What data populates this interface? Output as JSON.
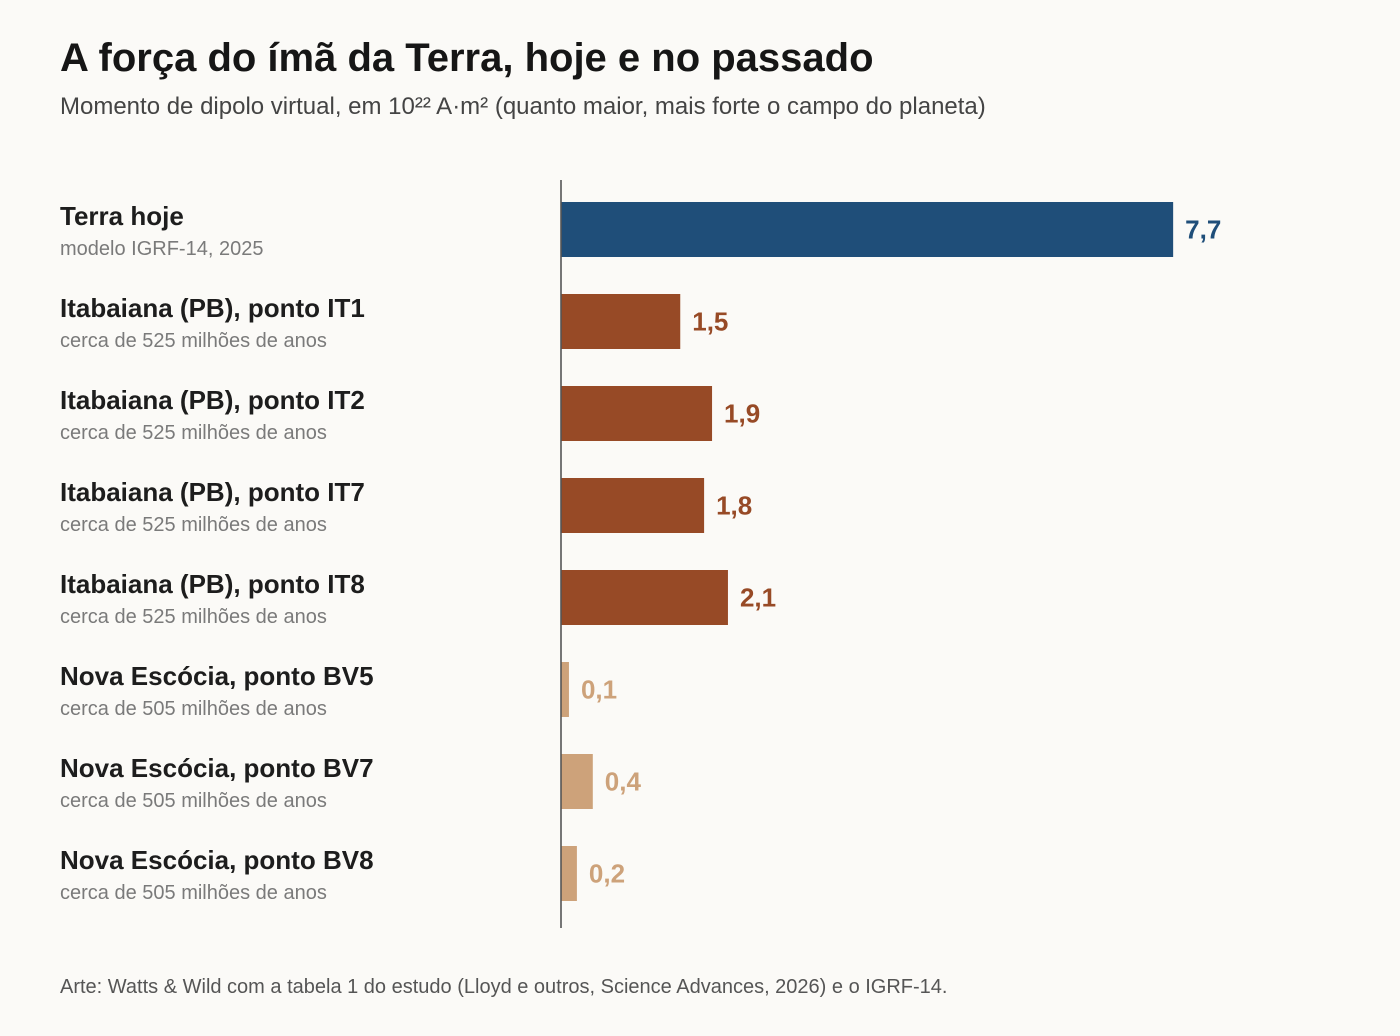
{
  "title": "A força do ímã da Terra, hoje e no passado",
  "subtitle": "Momento de dipolo virtual, em 10²² A·m² (quanto maior, mais forte o campo do planeta)",
  "source": "Arte: Watts & Wild com a tabela 1 do estudo (Lloyd e outros, Science Advances, 2026) e o IGRF-14.",
  "colors": {
    "today": "#1f4e79",
    "itabaiana": "#974a26",
    "nova_escocia": "#cda27a",
    "label": "#1d1d1d",
    "sublabel": "#7a7a7a",
    "axis": "#555555"
  },
  "chart_data": {
    "type": "bar",
    "orientation": "horizontal",
    "xlim": [
      0,
      10
    ],
    "categories": [
      "Terra hoje",
      "Itabaiana (PB), ponto IT1",
      "Itabaiana (PB), ponto IT2",
      "Itabaiana (PB), ponto IT7",
      "Itabaiana (PB), ponto IT8",
      "Nova Escócia, ponto BV5",
      "Nova Escócia, ponto BV7",
      "Nova Escócia, ponto BV8"
    ],
    "sublabels": [
      "modelo IGRF-14, 2025",
      "cerca de 525 milhões de anos",
      "cerca de 525 milhões de anos",
      "cerca de 525 milhões de anos",
      "cerca de 525 milhões de anos",
      "cerca de 505 milhões de anos",
      "cerca de 505 milhões de anos",
      "cerca de 505 milhões de anos"
    ],
    "values": [
      7.7,
      1.5,
      1.9,
      1.8,
      2.1,
      0.1,
      0.4,
      0.2
    ],
    "value_labels": [
      "7,7",
      "1,5",
      "1,9",
      "1,8",
      "2,1",
      "0,1",
      "0,4",
      "0,2"
    ],
    "groups": [
      "today",
      "itabaiana",
      "itabaiana",
      "itabaiana",
      "itabaiana",
      "nova_escocia",
      "nova_escocia",
      "nova_escocia"
    ],
    "grid": false,
    "legend": "none"
  }
}
